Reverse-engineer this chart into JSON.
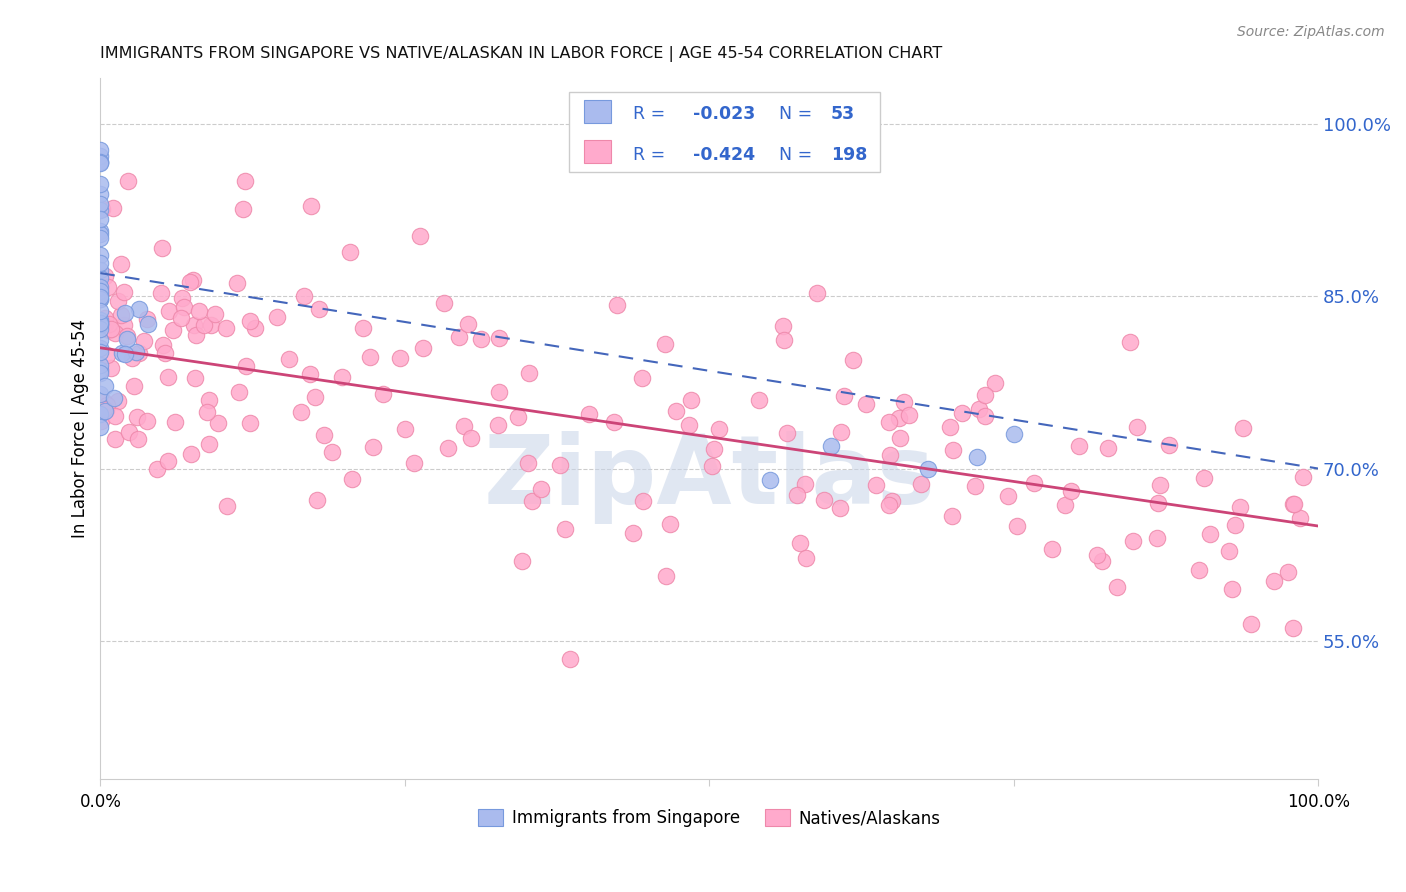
{
  "title": "IMMIGRANTS FROM SINGAPORE VS NATIVE/ALASKAN IN LABOR FORCE | AGE 45-54 CORRELATION CHART",
  "source": "Source: ZipAtlas.com",
  "ylabel": "In Labor Force | Age 45-54",
  "ytick_labels": [
    "100.0%",
    "85.0%",
    "70.0%",
    "55.0%"
  ],
  "ytick_values": [
    1.0,
    0.85,
    0.7,
    0.55
  ],
  "xlim": [
    0.0,
    1.0
  ],
  "ylim": [
    0.43,
    1.04
  ],
  "legend_label_blue": "Immigrants from Singapore",
  "legend_label_pink": "Natives/Alaskans",
  "blue_color": "#aabbee",
  "pink_color": "#ffaacc",
  "blue_edge_color": "#7799dd",
  "pink_edge_color": "#ee88aa",
  "blue_line_color": "#4466bb",
  "pink_line_color": "#cc4477",
  "watermark": "ZipAtlas",
  "blue_slope": -0.17,
  "blue_intercept": 0.87,
  "pink_slope": -0.155,
  "pink_intercept": 0.805
}
